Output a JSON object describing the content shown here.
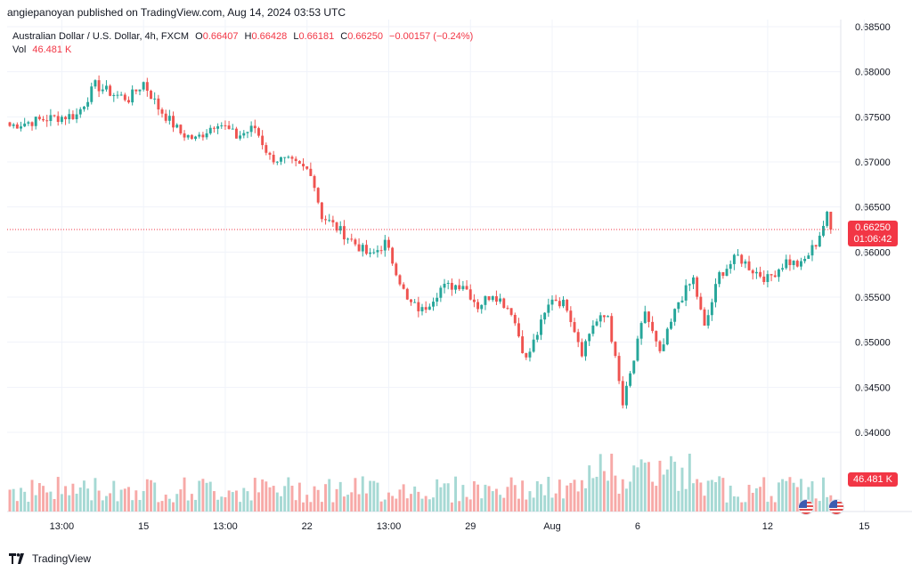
{
  "publisher": "angiepanoyan published on TradingView.com, Aug 14, 2024 03:53 UTC",
  "legend": {
    "symbol": "Australian Dollar / U.S. Dollar, 4h, FXCM",
    "o_label": "O",
    "o": "0.66407",
    "h_label": "H",
    "h": "0.66428",
    "l_label": "L",
    "l": "0.66181",
    "c_label": "C",
    "c": "0.66250",
    "change": "−0.00157 (−0.24%)",
    "vol_label": "Vol",
    "vol": "46.481 K"
  },
  "price_tag": {
    "price": "0.66250",
    "countdown": "01:06:42"
  },
  "volume_tag": "46.481 K",
  "footer": {
    "brand": "TradingView"
  },
  "colors": {
    "up": "#26a69a",
    "down": "#ef5350",
    "vol_up": "#a6d9d4",
    "vol_down": "#f7a9a7",
    "grid": "#f0f3fa",
    "accent": "#f23645"
  },
  "chart_data": {
    "type": "candlestick",
    "y_axis": {
      "min": 0.635,
      "max": 0.685,
      "ticks": [
        "0.68500",
        "0.68000",
        "0.67500",
        "0.67000",
        "0.66500",
        "0.66000",
        "0.65500",
        "0.65000",
        "0.64500",
        "0.64000"
      ]
    },
    "x_ticks": [
      "13:00",
      "15",
      "13:00",
      "22",
      "13:00",
      "29",
      "Aug",
      "6",
      "12",
      "15"
    ],
    "x_tick_bar_index": [
      14,
      36,
      58,
      80,
      102,
      124,
      146,
      169,
      204,
      230
    ],
    "bar_count": 222,
    "anchors": [
      [
        0,
        0.674
      ],
      [
        10,
        0.6748
      ],
      [
        18,
        0.6752
      ],
      [
        23,
        0.6785
      ],
      [
        28,
        0.6775
      ],
      [
        32,
        0.677
      ],
      [
        36,
        0.6788
      ],
      [
        40,
        0.676
      ],
      [
        46,
        0.6732
      ],
      [
        50,
        0.6725
      ],
      [
        56,
        0.6745
      ],
      [
        61,
        0.6728
      ],
      [
        66,
        0.6738
      ],
      [
        70,
        0.6705
      ],
      [
        75,
        0.67
      ],
      [
        81,
        0.669
      ],
      [
        84,
        0.664
      ],
      [
        90,
        0.662
      ],
      [
        97,
        0.6595
      ],
      [
        101,
        0.661
      ],
      [
        104,
        0.658
      ],
      [
        107,
        0.6545
      ],
      [
        111,
        0.6535
      ],
      [
        116,
        0.656
      ],
      [
        122,
        0.6565
      ],
      [
        126,
        0.654
      ],
      [
        130,
        0.6555
      ],
      [
        135,
        0.6535
      ],
      [
        139,
        0.648
      ],
      [
        142,
        0.651
      ],
      [
        146,
        0.655
      ],
      [
        150,
        0.654
      ],
      [
        154,
        0.649
      ],
      [
        157,
        0.652
      ],
      [
        161,
        0.653
      ],
      [
        165,
        0.643
      ],
      [
        168,
        0.648
      ],
      [
        171,
        0.6535
      ],
      [
        175,
        0.6485
      ],
      [
        180,
        0.6545
      ],
      [
        184,
        0.657
      ],
      [
        187,
        0.6515
      ],
      [
        191,
        0.6575
      ],
      [
        196,
        0.6595
      ],
      [
        200,
        0.658
      ],
      [
        204,
        0.657
      ],
      [
        209,
        0.659
      ],
      [
        213,
        0.6585
      ],
      [
        217,
        0.661
      ],
      [
        220,
        0.664
      ],
      [
        221,
        0.6625
      ]
    ],
    "volume_max": 100000,
    "last_volume": "46.481 K"
  }
}
